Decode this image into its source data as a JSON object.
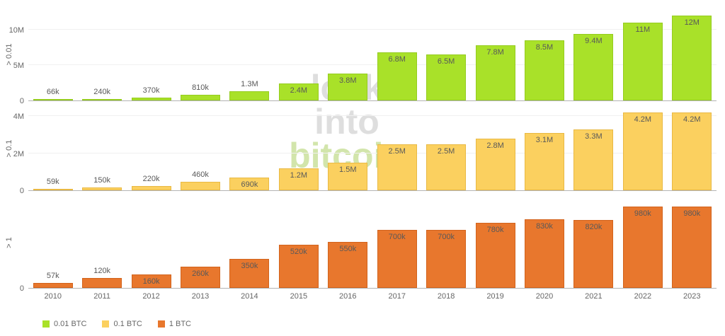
{
  "watermark": {
    "lines": [
      "look",
      "into",
      "bitcoin"
    ]
  },
  "legend": {
    "items": [
      {
        "label": "0.01 BTC",
        "color": "#a9e129"
      },
      {
        "label": "0.1 BTC",
        "color": "#fbd05f"
      },
      {
        "label": "1 BTC",
        "color": "#e8772d"
      }
    ]
  },
  "chart_data": {
    "type": "bar",
    "x": [
      "2010",
      "2011",
      "2012",
      "2013",
      "2014",
      "2015",
      "2016",
      "2017",
      "2018",
      "2019",
      "2020",
      "2021",
      "2022",
      "2023"
    ],
    "panels": [
      {
        "axis_label": "> 0.01",
        "series_name": "0.01 BTC",
        "color": "#a9e129",
        "border_color": "#95cc1f",
        "values": [
          66000,
          240000,
          370000,
          810000,
          1300000,
          2400000,
          3800000,
          6800000,
          6500000,
          7800000,
          8500000,
          9400000,
          11000000,
          12000000
        ],
        "labels": [
          "66k",
          "240k",
          "370k",
          "810k",
          "1.3M",
          "2.4M",
          "3.8M",
          "6.8M",
          "6.5M",
          "7.8M",
          "8.5M",
          "9.4M",
          "11M",
          "12M"
        ],
        "yticks": [
          {
            "label": "0",
            "value": 0
          },
          {
            "label": "5M",
            "value": 5000000
          },
          {
            "label": "10M",
            "value": 10000000
          }
        ],
        "ylim": [
          0,
          13300000
        ]
      },
      {
        "axis_label": "> 0.1",
        "series_name": "0.1 BTC",
        "color": "#fbd05f",
        "border_color": "#e9b944",
        "values": [
          59000,
          150000,
          220000,
          460000,
          690000,
          1200000,
          1500000,
          2500000,
          2500000,
          2800000,
          3100000,
          3300000,
          4200000,
          4200000
        ],
        "labels": [
          "59k",
          "150k",
          "220k",
          "460k",
          "690k",
          "1.2M",
          "1.5M",
          "2.5M",
          "2.5M",
          "2.8M",
          "3.1M",
          "3.3M",
          "4.2M",
          "4.2M"
        ],
        "yticks": [
          {
            "label": "0",
            "value": 0
          },
          {
            "label": "2M",
            "value": 2000000
          },
          {
            "label": "4M",
            "value": 4000000
          }
        ],
        "ylim": [
          0,
          4580000
        ]
      },
      {
        "axis_label": "> 1",
        "series_name": "1 BTC",
        "color": "#e8772d",
        "border_color": "#d2631c",
        "values": [
          57000,
          120000,
          160000,
          260000,
          350000,
          520000,
          550000,
          700000,
          700000,
          780000,
          830000,
          820000,
          980000,
          980000
        ],
        "labels": [
          "57k",
          "120k",
          "160k",
          "260k",
          "350k",
          "520k",
          "550k",
          "700k",
          "700k",
          "780k",
          "830k",
          "820k",
          "980k",
          "980k"
        ],
        "yticks": [
          {
            "label": "0",
            "value": 0
          }
        ],
        "ylim": [
          0,
          1108000
        ]
      }
    ]
  }
}
